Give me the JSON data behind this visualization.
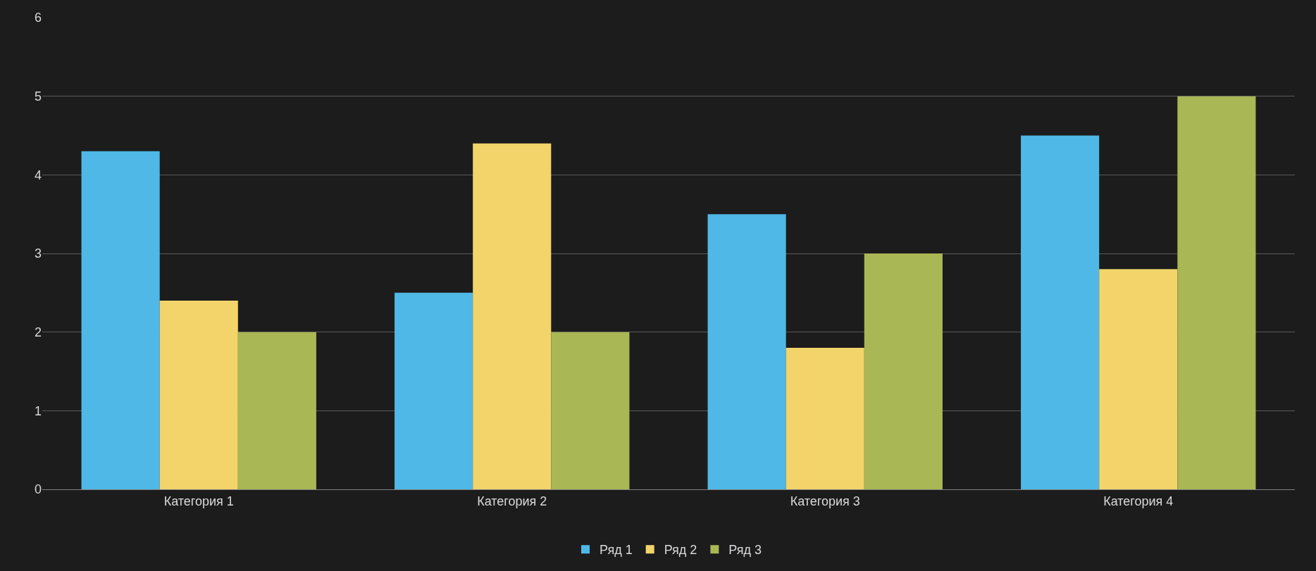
{
  "chart_data": {
    "type": "bar",
    "categories": [
      "Категория 1",
      "Категория 2",
      "Категория 3",
      "Категория 4"
    ],
    "series": [
      {
        "name": "Ряд 1",
        "color": "#4fb8e6",
        "values": [
          4.3,
          2.5,
          3.5,
          4.5
        ]
      },
      {
        "name": "Ряд 2",
        "color": "#f2d46b",
        "values": [
          2.4,
          4.4,
          1.8,
          2.8
        ]
      },
      {
        "name": "Ряд 3",
        "color": "#a9b755",
        "values": [
          2,
          2,
          3,
          5
        ]
      }
    ],
    "ylim": [
      0,
      6
    ],
    "yticks": [
      0,
      1,
      2,
      3,
      4,
      5,
      6
    ],
    "grid": "y",
    "legend": "bottom"
  }
}
